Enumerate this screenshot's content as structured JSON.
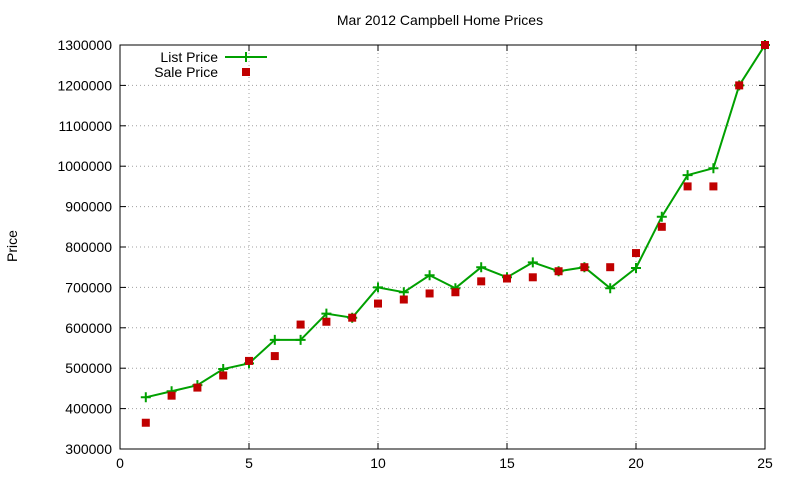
{
  "chart_data": {
    "type": "line",
    "title": "Mar 2012 Campbell Home Prices",
    "xlabel": "",
    "ylabel": "Price",
    "xlim": [
      0,
      25
    ],
    "ylim": [
      300000,
      1300000
    ],
    "xticks": [
      0,
      5,
      10,
      15,
      20,
      25
    ],
    "yticks": [
      300000,
      400000,
      500000,
      600000,
      700000,
      800000,
      900000,
      1000000,
      1100000,
      1200000,
      1300000
    ],
    "grid": true,
    "legend_position": "top-left",
    "series": [
      {
        "name": "List Price",
        "style": "line+points",
        "color": "#00a000",
        "x": [
          1,
          2,
          3,
          4,
          5,
          6,
          7,
          8,
          9,
          10,
          11,
          12,
          13,
          14,
          15,
          16,
          17,
          18,
          19,
          20,
          21,
          22,
          23,
          24,
          25
        ],
        "y": [
          428000,
          443000,
          458000,
          498000,
          512000,
          570000,
          570000,
          635000,
          625000,
          700000,
          688000,
          730000,
          698000,
          750000,
          725000,
          762000,
          740000,
          750000,
          698000,
          748000,
          875000,
          978000,
          995000,
          1200000,
          1300000
        ]
      },
      {
        "name": "Sale Price",
        "style": "points",
        "color": "#c00000",
        "x": [
          1,
          2,
          3,
          4,
          5,
          6,
          7,
          8,
          9,
          10,
          11,
          12,
          13,
          14,
          15,
          16,
          17,
          18,
          19,
          20,
          21,
          22,
          23,
          24,
          25
        ],
        "y": [
          365000,
          432000,
          452000,
          482000,
          518000,
          530000,
          608000,
          615000,
          625000,
          660000,
          670000,
          685000,
          688000,
          715000,
          722000,
          725000,
          740000,
          750000,
          750000,
          785000,
          850000,
          950000,
          950000,
          1200000,
          1300000
        ]
      }
    ]
  }
}
